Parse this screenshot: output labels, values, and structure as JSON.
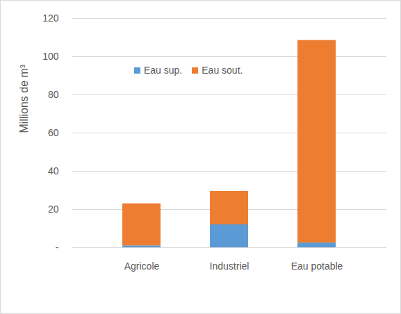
{
  "chart_data": {
    "type": "bar",
    "stacked": true,
    "grid": true,
    "legend": "top",
    "y_label": "Millions de m³",
    "categories": [
      "Agricole",
      "Industriel",
      "Eau potable"
    ],
    "series": [
      {
        "name": "Eau sup.",
        "color": "#5b9bd5",
        "values": [
          1,
          12,
          2.5
        ]
      },
      {
        "name": "Eau sout.",
        "color": "#ed7d31",
        "values": [
          22,
          17.5,
          106
        ]
      }
    ],
    "ylim": [
      0,
      120
    ],
    "yticks": [
      {
        "value": 0,
        "label": "-"
      },
      20,
      40,
      60,
      80,
      100,
      120
    ]
  }
}
